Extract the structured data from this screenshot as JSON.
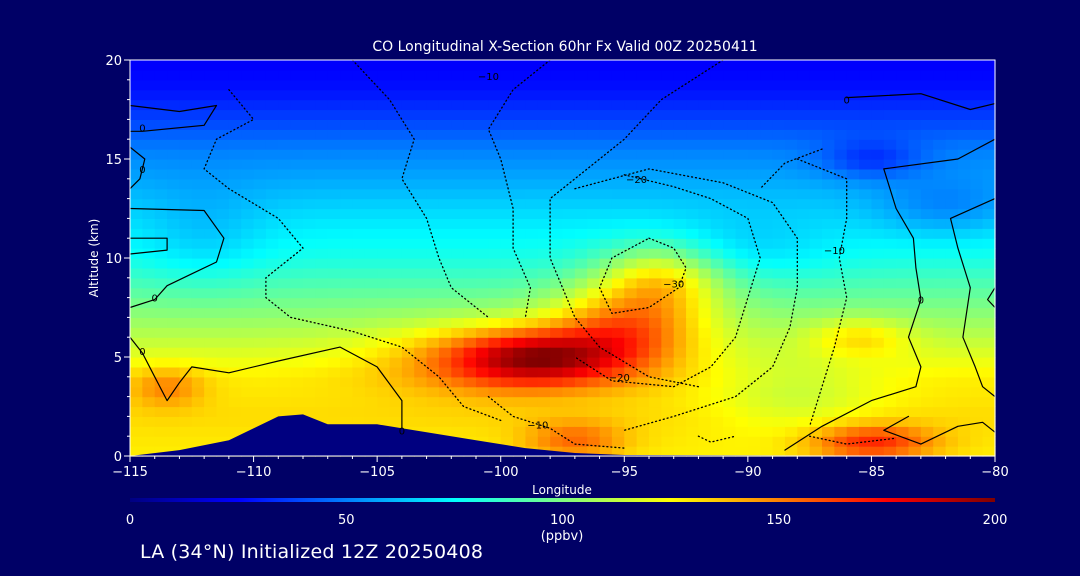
{
  "chart_data": {
    "type": "heatmap",
    "title": "CO Longitudinal X-Section 60hr  Fx Valid 00Z 20250411",
    "xlabel": "Longitude",
    "ylabel": "Altitude (km)",
    "xlim": [
      -115,
      -80
    ],
    "ylim": [
      0,
      20
    ],
    "x_ticks": [
      -115,
      -110,
      -105,
      -100,
      -95,
      -90,
      -85,
      -80
    ],
    "x_tick_labels": [
      "−115",
      "−110",
      "−105",
      "−100",
      "−95",
      "−90",
      "−85",
      "−80"
    ],
    "y_ticks": [
      0,
      5,
      10,
      15,
      20
    ],
    "y_tick_labels": [
      "0",
      "5",
      "10",
      "15",
      "20"
    ],
    "colorbar": {
      "min": 0,
      "max": 200,
      "ticks": [
        0,
        50,
        100,
        150,
        200
      ],
      "tick_labels": [
        "0",
        "50",
        "100",
        "150",
        "200"
      ],
      "unit_label": "(ppbv)",
      "colormap": [
        "#000080",
        "#0000ff",
        "#0080ff",
        "#00ffff",
        "#80ff80",
        "#ffff00",
        "#ff8000",
        "#ff0000",
        "#800000"
      ]
    },
    "co_field": {
      "description_units": "ppbv",
      "background_profile": [
        {
          "z": 0,
          "v": 128
        },
        {
          "z": 2,
          "v": 132
        },
        {
          "z": 4,
          "v": 128
        },
        {
          "z": 6,
          "v": 112
        },
        {
          "z": 8,
          "v": 96
        },
        {
          "z": 10,
          "v": 80
        },
        {
          "z": 12,
          "v": 70
        },
        {
          "z": 14,
          "v": 58
        },
        {
          "z": 15.5,
          "v": 50
        },
        {
          "z": 17,
          "v": 38
        },
        {
          "z": 18.5,
          "v": 28
        },
        {
          "z": 20,
          "v": 24
        }
      ],
      "features": [
        {
          "lon": -98.5,
          "z": 5.0,
          "dlon": 3.5,
          "dz": 1.4,
          "amp": 60
        },
        {
          "lon": -95.0,
          "z": 6.5,
          "dlon": 3.0,
          "dz": 2.0,
          "amp": 45
        },
        {
          "lon": -93.5,
          "z": 9.0,
          "dlon": 2.5,
          "dz": 1.8,
          "amp": 40
        },
        {
          "lon": -101.0,
          "z": 5.0,
          "dlon": 4.5,
          "dz": 1.8,
          "amp": 20
        },
        {
          "lon": -85.5,
          "z": 6.0,
          "dlon": 2.0,
          "dz": 1.0,
          "amp": 20
        },
        {
          "lon": -85.0,
          "z": 0.7,
          "dlon": 2.5,
          "dz": 0.9,
          "amp": 40
        },
        {
          "lon": -97.0,
          "z": 0.8,
          "dlon": 2.0,
          "dz": 1.0,
          "amp": 25
        },
        {
          "lon": -88.0,
          "z": 3.0,
          "dlon": 3.5,
          "dz": 2.0,
          "amp": -15
        },
        {
          "lon": -112.0,
          "z": 11.0,
          "dlon": 2.5,
          "dz": 2.5,
          "amp": -10
        },
        {
          "lon": -82.0,
          "z": 12.5,
          "dlon": 3.0,
          "dz": 1.5,
          "amp": -15
        },
        {
          "lon": -85.0,
          "z": 15.0,
          "dlon": 2.0,
          "dz": 1.0,
          "amp": -18
        },
        {
          "lon": -113.5,
          "z": 3.5,
          "dlon": 1.5,
          "dz": 1.0,
          "amp": 20
        },
        {
          "lon": -90.0,
          "z": 10.5,
          "dlon": 3.5,
          "dz": 1.8,
          "amp": -10
        }
      ]
    },
    "terrain_km": [
      {
        "lon": -115,
        "z": 0
      },
      {
        "lon": -113,
        "z": 0.3
      },
      {
        "lon": -111,
        "z": 0.8
      },
      {
        "lon": -109,
        "z": 2.0
      },
      {
        "lon": -108,
        "z": 2.1
      },
      {
        "lon": -107,
        "z": 1.6
      },
      {
        "lon": -105,
        "z": 1.6
      },
      {
        "lon": -103,
        "z": 1.2
      },
      {
        "lon": -101,
        "z": 0.8
      },
      {
        "lon": -99,
        "z": 0.4
      },
      {
        "lon": -97,
        "z": 0.15
      },
      {
        "lon": -95,
        "z": 0.05
      },
      {
        "lon": -80,
        "z": 0
      }
    ],
    "contour_labels": [
      {
        "text": "0",
        "lon": -114.5,
        "z": 16.6
      },
      {
        "text": "0",
        "lon": -114.5,
        "z": 14.5
      },
      {
        "text": "0",
        "lon": -114.0,
        "z": 8.0
      },
      {
        "text": "0",
        "lon": -114.5,
        "z": 5.3
      },
      {
        "text": "0",
        "lon": -104.0,
        "z": 1.3
      },
      {
        "text": "0",
        "lon": -86.0,
        "z": 18.0
      },
      {
        "text": "0",
        "lon": -83.0,
        "z": 7.9
      },
      {
        "text": "−10",
        "lon": -100.5,
        "z": 19.2
      },
      {
        "text": "−20",
        "lon": -94.5,
        "z": 14.0
      },
      {
        "text": "−30",
        "lon": -93.0,
        "z": 8.7
      },
      {
        "text": "−20",
        "lon": -95.2,
        "z": 4.0
      },
      {
        "text": "−10",
        "lon": -86.5,
        "z": 10.4
      },
      {
        "text": "−10",
        "lon": -98.5,
        "z": 1.6
      }
    ],
    "contour_lines": [
      {
        "style": "solid",
        "points": [
          [
            -115,
            17.7
          ],
          [
            -113,
            17.4
          ],
          [
            -111.5,
            17.7
          ],
          [
            -112,
            16.7
          ],
          [
            -114.5,
            16.4
          ],
          [
            -115,
            16.4
          ]
        ]
      },
      {
        "style": "solid",
        "points": [
          [
            -115,
            15.6
          ],
          [
            -114.4,
            15.0
          ],
          [
            -114.6,
            14.0
          ],
          [
            -115,
            13.5
          ]
        ]
      },
      {
        "style": "solid",
        "points": [
          [
            -115,
            12.5
          ],
          [
            -112,
            12.4
          ],
          [
            -111.2,
            11.0
          ],
          [
            -111.5,
            9.8
          ],
          [
            -112.5,
            9.2
          ],
          [
            -113.5,
            8.6
          ],
          [
            -114,
            7.9
          ],
          [
            -115,
            7.5
          ]
        ]
      },
      {
        "style": "solid",
        "points": [
          [
            -115,
            11.0
          ],
          [
            -113.5,
            11.0
          ],
          [
            -113.5,
            10.4
          ],
          [
            -115,
            10.2
          ]
        ]
      },
      {
        "style": "solid",
        "points": [
          [
            -115,
            6.0
          ],
          [
            -114.5,
            5.2
          ],
          [
            -114.0,
            4.0
          ],
          [
            -113.5,
            2.8
          ],
          [
            -113.0,
            3.7
          ],
          [
            -112.5,
            4.5
          ],
          [
            -111.0,
            4.2
          ],
          [
            -109.0,
            4.8
          ],
          [
            -106.5,
            5.5
          ],
          [
            -105.0,
            4.5
          ],
          [
            -104.0,
            2.8
          ],
          [
            -104.0,
            1.4
          ]
        ]
      },
      {
        "style": "solid",
        "points": [
          [
            -86,
            18.1
          ],
          [
            -83,
            18.3
          ],
          [
            -81,
            17.5
          ],
          [
            -80,
            17.8
          ]
        ]
      },
      {
        "style": "solid",
        "points": [
          [
            -80,
            16.0
          ],
          [
            -81.5,
            15.0
          ],
          [
            -84.5,
            14.5
          ],
          [
            -84.0,
            12.5
          ],
          [
            -83.3,
            11.0
          ],
          [
            -83.2,
            9.5
          ],
          [
            -83.0,
            7.9
          ],
          [
            -83.5,
            6.0
          ],
          [
            -83.0,
            4.5
          ],
          [
            -83.2,
            3.5
          ],
          [
            -85.0,
            2.8
          ],
          [
            -87.0,
            1.5
          ],
          [
            -88.5,
            0.3
          ]
        ]
      },
      {
        "style": "solid",
        "points": [
          [
            -80,
            13.0
          ],
          [
            -81.8,
            12.0
          ],
          [
            -81.5,
            10.5
          ],
          [
            -81.0,
            8.5
          ],
          [
            -81.3,
            6.0
          ],
          [
            -80.8,
            4.5
          ],
          [
            -80.5,
            3.5
          ],
          [
            -80,
            3.0
          ]
        ]
      },
      {
        "style": "solid",
        "points": [
          [
            -80,
            8.5
          ],
          [
            -80.3,
            7.9
          ],
          [
            -80,
            7.5
          ]
        ]
      },
      {
        "style": "solid",
        "points": [
          [
            -83.5,
            2.0
          ],
          [
            -84.5,
            1.3
          ],
          [
            -83.0,
            0.6
          ],
          [
            -81.5,
            1.5
          ],
          [
            -80.5,
            1.7
          ],
          [
            -80,
            1.2
          ]
        ]
      },
      {
        "style": "dotted",
        "points": [
          [
            -111,
            18.5
          ],
          [
            -110,
            17.0
          ],
          [
            -111.5,
            16.0
          ],
          [
            -112.0,
            14.5
          ],
          [
            -111.0,
            13.5
          ],
          [
            -109.0,
            12.0
          ],
          [
            -108.0,
            10.5
          ],
          [
            -109.5,
            9.0
          ],
          [
            -109.5,
            8.0
          ],
          [
            -108.5,
            7.0
          ],
          [
            -106.0,
            6.3
          ],
          [
            -104.0,
            5.5
          ],
          [
            -102.5,
            4.0
          ],
          [
            -101.5,
            2.5
          ],
          [
            -100.0,
            1.8
          ]
        ]
      },
      {
        "style": "dotted",
        "points": [
          [
            -106,
            20
          ],
          [
            -104.5,
            18.0
          ],
          [
            -103.5,
            16.0
          ],
          [
            -104.0,
            14.0
          ],
          [
            -103.0,
            12.0
          ],
          [
            -102.5,
            10.0
          ],
          [
            -102.0,
            8.5
          ],
          [
            -100.5,
            7.0
          ]
        ]
      },
      {
        "style": "dotted",
        "points": [
          [
            -98,
            20
          ],
          [
            -99.5,
            18.5
          ],
          [
            -100.5,
            16.5
          ],
          [
            -100.0,
            15.0
          ],
          [
            -99.5,
            12.5
          ],
          [
            -99.5,
            10.5
          ],
          [
            -98.8,
            8.5
          ],
          [
            -99.0,
            7.0
          ]
        ]
      },
      {
        "style": "dotted",
        "points": [
          [
            -91,
            20
          ],
          [
            -93.5,
            18.0
          ],
          [
            -95.0,
            16.0
          ],
          [
            -96.5,
            14.5
          ],
          [
            -98.0,
            13.0
          ],
          [
            -98.0,
            10.0
          ],
          [
            -97.0,
            7.0
          ],
          [
            -96.0,
            5.5
          ],
          [
            -94.0,
            4.0
          ],
          [
            -92.0,
            3.5
          ]
        ]
      },
      {
        "style": "dotted",
        "points": [
          [
            -95.0,
            14.2
          ],
          [
            -93.0,
            13.6
          ],
          [
            -91.5,
            13.0
          ],
          [
            -90.0,
            12.0
          ],
          [
            -89.5,
            10.0
          ],
          [
            -90.0,
            8.0
          ],
          [
            -90.5,
            6.0
          ],
          [
            -91.5,
            4.5
          ],
          [
            -93.0,
            3.5
          ],
          [
            -95.5,
            3.8
          ],
          [
            -97.0,
            5.0
          ]
        ]
      },
      {
        "style": "dotted",
        "points": [
          [
            -94.0,
            11.0
          ],
          [
            -93.0,
            10.5
          ],
          [
            -92.5,
            9.5
          ],
          [
            -92.8,
            8.5
          ],
          [
            -94.0,
            7.5
          ],
          [
            -95.5,
            7.2
          ],
          [
            -96.0,
            8.5
          ],
          [
            -95.5,
            10.0
          ],
          [
            -94.0,
            11.0
          ]
        ]
      },
      {
        "style": "dotted",
        "points": [
          [
            -97.0,
            13.5
          ],
          [
            -94.0,
            14.5
          ],
          [
            -91.0,
            13.8
          ],
          [
            -89.0,
            12.8
          ],
          [
            -88.0,
            11.0
          ],
          [
            -88.0,
            8.5
          ],
          [
            -88.3,
            6.5
          ],
          [
            -89.0,
            4.5
          ],
          [
            -90.5,
            3.0
          ],
          [
            -93.0,
            2.0
          ],
          [
            -95.0,
            1.3
          ]
        ]
      },
      {
        "style": "dotted",
        "points": [
          [
            -88.0,
            15.0
          ],
          [
            -86.0,
            14.0
          ],
          [
            -86.0,
            12.0
          ],
          [
            -86.3,
            10.0
          ],
          [
            -86.0,
            8.0
          ],
          [
            -86.5,
            5.5
          ],
          [
            -87.0,
            3.5
          ],
          [
            -87.5,
            1.5
          ]
        ]
      },
      {
        "style": "dotted",
        "points": [
          [
            -87.0,
            15.5
          ],
          [
            -88.5,
            14.8
          ],
          [
            -89.5,
            13.5
          ]
        ]
      },
      {
        "style": "dotted",
        "points": [
          [
            -100.5,
            3.0
          ],
          [
            -99.5,
            2.0
          ],
          [
            -98.0,
            1.4
          ],
          [
            -97.0,
            0.6
          ],
          [
            -95.0,
            0.4
          ]
        ]
      },
      {
        "style": "dotted",
        "points": [
          [
            -92.0,
            1.0
          ],
          [
            -91.5,
            0.7
          ],
          [
            -90.5,
            1.0
          ]
        ]
      },
      {
        "style": "dotted",
        "points": [
          [
            -87.5,
            1.0
          ],
          [
            -86.0,
            0.6
          ],
          [
            -84.0,
            0.9
          ]
        ]
      }
    ],
    "subtitle_bottom": "LA (34°N) Initialized 12Z 20250408",
    "grid": false
  }
}
